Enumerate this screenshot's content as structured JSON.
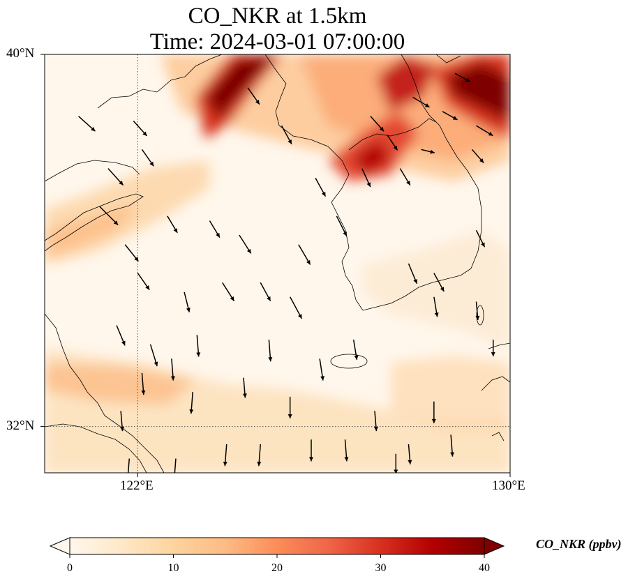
{
  "title": {
    "line1": "CO_NKR at 1.5km",
    "line2": "Time: 2024-03-01 07:00:00"
  },
  "map": {
    "lon_range": [
      119,
      130
    ],
    "lat_range": [
      31.2,
      40
    ],
    "gridlines": {
      "lons": [
        122
      ],
      "lats": [
        32
      ],
      "style": "dotted"
    },
    "x_tick_labels": [
      "122°E",
      "130°E"
    ],
    "y_tick_labels": [
      "40°N",
      "32°N"
    ]
  },
  "colorbar": {
    "label": "CO_NKR (ppbv)",
    "min": 0,
    "max": 40,
    "extend": "both",
    "tick_labels": [
      "0",
      "10",
      "20",
      "30",
      "40"
    ],
    "colormap": "OrRd",
    "colors": [
      "#fff7ec",
      "#fee8c8",
      "#fdd49e",
      "#fdbb84",
      "#fc8d59",
      "#ef6548",
      "#d7301f",
      "#b30000",
      "#7f0000"
    ]
  },
  "field_features": [
    {
      "name": "plume-nw-korea",
      "lon": 123.6,
      "lat": 39.4,
      "value": 40
    },
    {
      "name": "plume-ne-korea",
      "lon": 129.4,
      "lat": 39.3,
      "value": 40
    },
    {
      "name": "plume-pyongyang",
      "lon": 125.7,
      "lat": 38.5,
      "value": 35
    },
    {
      "name": "plume-north-korea-inland",
      "lon": 127.2,
      "lat": 39.5,
      "value": 30
    },
    {
      "name": "band-shandong",
      "lon": 120.0,
      "lat": 36.6,
      "value": 14
    },
    {
      "name": "band-south",
      "lon": 122.3,
      "lat": 33.1,
      "value": 13
    }
  ],
  "wind_vectors": [
    [
      120.3,
      36.8,
      1.1,
      -1.1
    ],
    [
      120.5,
      37.6,
      0.9,
      -1.0
    ],
    [
      119.8,
      38.7,
      1.0,
      -0.9
    ],
    [
      120.9,
      36.0,
      0.8,
      -1.0
    ],
    [
      121.2,
      35.4,
      0.7,
      -1.0
    ],
    [
      120.7,
      34.3,
      0.5,
      -1.2
    ],
    [
      121.5,
      33.9,
      0.4,
      -1.3
    ],
    [
      121.9,
      36.6,
      0.6,
      -1.0
    ],
    [
      121.3,
      38.0,
      0.7,
      -1.0
    ],
    [
      122.3,
      35.0,
      0.3,
      -1.2
    ],
    [
      122.9,
      36.5,
      0.6,
      -1.0
    ],
    [
      123.2,
      35.2,
      0.7,
      -1.1
    ],
    [
      123.6,
      36.2,
      0.7,
      -1.1
    ],
    [
      124.1,
      35.2,
      0.6,
      -1.1
    ],
    [
      124.8,
      34.9,
      0.7,
      -1.3
    ],
    [
      125.0,
      36.0,
      0.7,
      -1.2
    ],
    [
      125.4,
      37.4,
      0.6,
      -1.1
    ],
    [
      125.9,
      36.6,
      0.6,
      -1.2
    ],
    [
      126.5,
      37.6,
      0.5,
      -1.1
    ],
    [
      127.1,
      38.3,
      0.6,
      -0.9
    ],
    [
      127.4,
      37.6,
      0.6,
      -1.0
    ],
    [
      128.4,
      38.8,
      0.9,
      -0.5
    ],
    [
      127.9,
      38.0,
      0.8,
      -0.2
    ],
    [
      129.1,
      38.0,
      0.7,
      -0.8
    ],
    [
      129.2,
      36.3,
      0.5,
      -1.0
    ],
    [
      128.2,
      35.4,
      0.6,
      -1.1
    ],
    [
      127.6,
      35.6,
      0.5,
      -1.2
    ],
    [
      128.2,
      34.9,
      0.2,
      -1.2
    ],
    [
      129.2,
      34.8,
      0.1,
      -1.1
    ],
    [
      129.6,
      34.0,
      0.0,
      -1.0
    ],
    [
      126.3,
      34.0,
      0.2,
      -1.2
    ],
    [
      125.5,
      33.6,
      0.2,
      -1.3
    ],
    [
      124.3,
      34.0,
      0.1,
      -1.3
    ],
    [
      122.6,
      34.1,
      0.1,
      -1.3
    ],
    [
      121.3,
      33.3,
      0.1,
      -1.3
    ],
    [
      120.8,
      32.5,
      0.1,
      -1.2
    ],
    [
      121.0,
      31.5,
      -0.1,
      -1.3
    ],
    [
      122.5,
      32.9,
      -0.1,
      -1.3
    ],
    [
      123.3,
      31.8,
      -0.1,
      -1.3
    ],
    [
      124.1,
      31.8,
      -0.1,
      -1.3
    ],
    [
      124.8,
      32.8,
      0.0,
      -1.3
    ],
    [
      125.3,
      31.9,
      0.0,
      -1.3
    ],
    [
      126.1,
      31.9,
      0.1,
      -1.3
    ],
    [
      126.8,
      32.5,
      0.1,
      -1.2
    ],
    [
      127.3,
      31.6,
      0.0,
      -1.2
    ],
    [
      127.6,
      31.8,
      0.1,
      -1.2
    ],
    [
      128.2,
      32.7,
      0.0,
      -1.3
    ],
    [
      128.6,
      32.0,
      0.1,
      -1.3
    ],
    [
      125.9,
      31.2,
      0.1,
      -1.3
    ],
    [
      123.7,
      33.2,
      0.1,
      -1.2
    ],
    [
      122.1,
      31.5,
      -0.1,
      -1.3
    ],
    [
      122.0,
      33.6,
      0.1,
      -1.3
    ],
    [
      121.1,
      38.6,
      0.8,
      -0.9
    ],
    [
      124.6,
      38.5,
      0.6,
      -1.1
    ],
    [
      126.7,
      38.7,
      0.8,
      -0.9
    ],
    [
      127.7,
      39.1,
      1.0,
      -0.6
    ],
    [
      128.7,
      39.6,
      0.9,
      -0.5
    ],
    [
      129.2,
      38.5,
      1.0,
      -0.6
    ],
    [
      123.8,
      39.3,
      0.7,
      -1.0
    ]
  ]
}
